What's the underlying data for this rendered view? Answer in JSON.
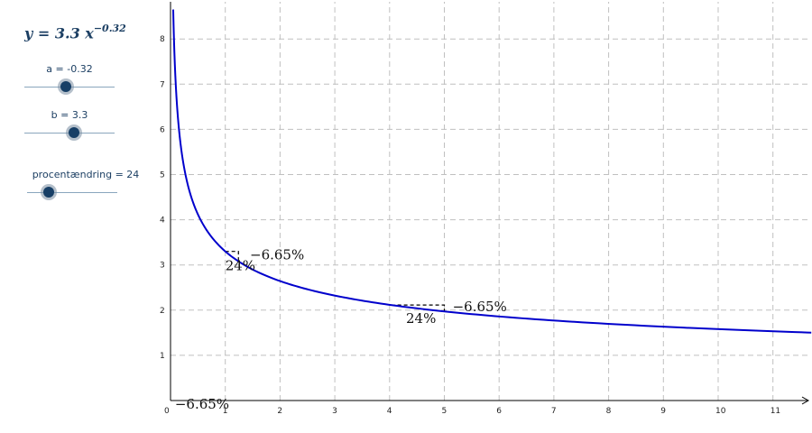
{
  "algebra": {
    "formula": {
      "lhs": "y",
      "equals": "=",
      "coef": "3.3",
      "var": "x",
      "exponent": "−0.32"
    },
    "sliders": [
      {
        "label": "a = -0.32",
        "position": 0.46
      },
      {
        "label": "b = 3.3",
        "position": 0.55
      },
      {
        "label": "procentændring = 24",
        "position": 0.24
      }
    ]
  },
  "chart_data": {
    "type": "line",
    "function": {
      "a": 3.3,
      "b": -0.32
    },
    "xlim": [
      0,
      11.7
    ],
    "ylim": [
      0,
      8.7
    ],
    "xticks": [
      "0",
      "1",
      "2",
      "3",
      "4",
      "5",
      "6",
      "7",
      "8",
      "9",
      "10",
      "11"
    ],
    "yticks": [
      "1",
      "2",
      "3",
      "4",
      "5",
      "6",
      "7",
      "8"
    ],
    "grid": true,
    "curve_color": "#0000cc",
    "annotations": [
      {
        "text": "24%",
        "x": 1.0,
        "y": 2.88
      },
      {
        "text": "−6.65%",
        "x": 1.45,
        "y": 3.12
      },
      {
        "text": "24%",
        "x": 4.3,
        "y": 1.72
      },
      {
        "text": "−6.65%",
        "x": 5.15,
        "y": 1.98
      },
      {
        "text": "−6.65%",
        "x": 0.08,
        "y": -0.18
      }
    ],
    "triangles": [
      {
        "x1": 1.0,
        "x2": 1.24
      },
      {
        "x1": 4.03,
        "x2": 5.0
      }
    ]
  }
}
